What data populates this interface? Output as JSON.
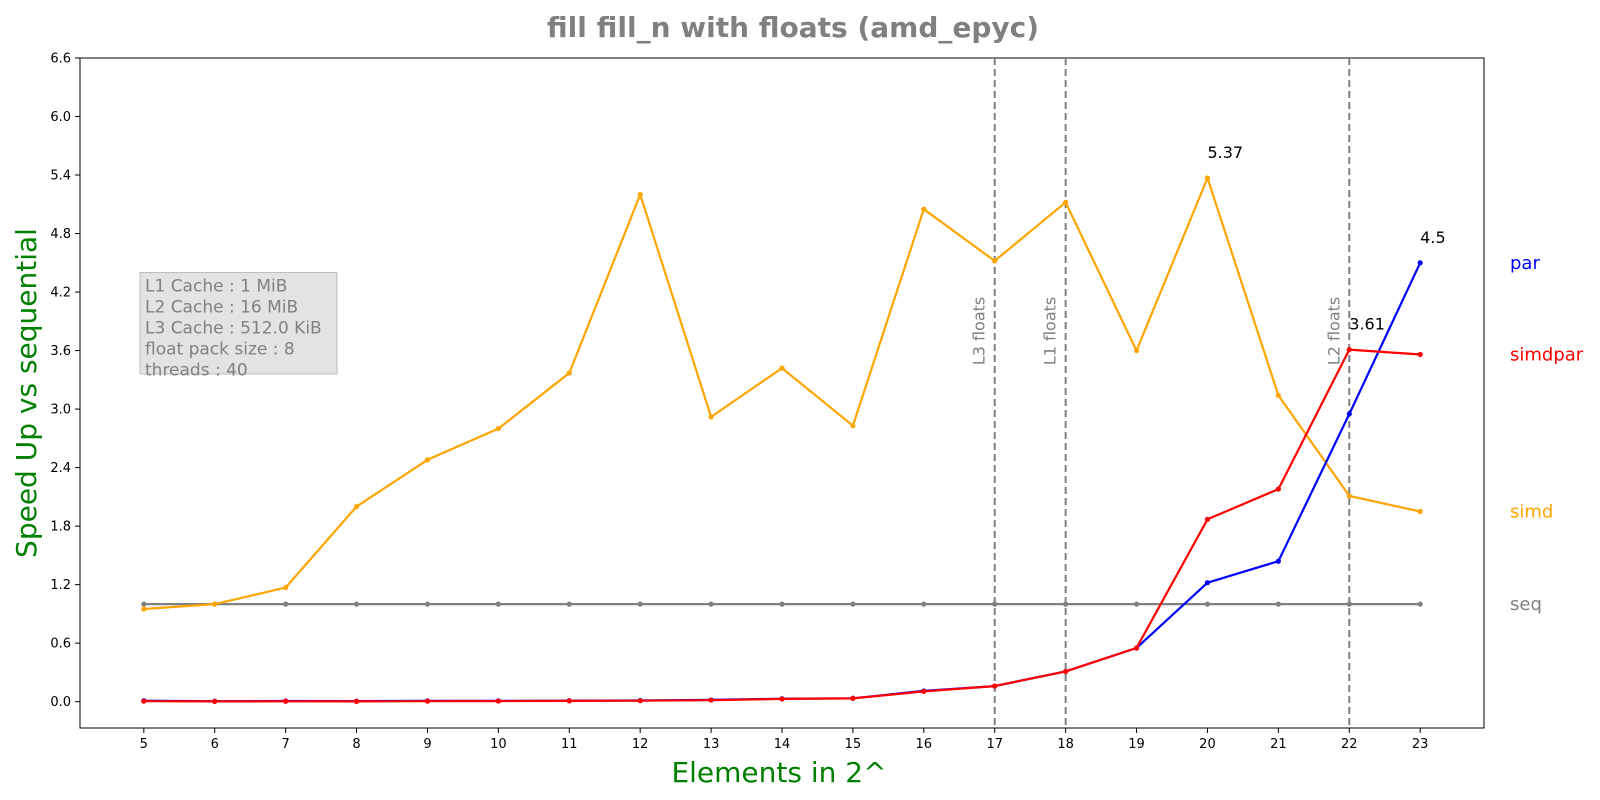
{
  "chart_data": {
    "type": "line",
    "title": "fill fill_n with floats  (amd_epyc)",
    "xlabel": "Elements in 2^",
    "ylabel": "Speed Up vs sequential",
    "x": [
      5,
      6,
      7,
      8,
      9,
      10,
      11,
      12,
      13,
      14,
      15,
      16,
      17,
      18,
      19,
      20,
      21,
      22,
      23
    ],
    "xlim": [
      4.1,
      23.9
    ],
    "ylim": [
      -0.27,
      6.6
    ],
    "yticks": [
      0.0,
      0.6,
      1.2,
      1.8,
      2.4,
      3.0,
      3.6,
      4.2,
      4.8,
      5.4,
      6.0,
      6.6
    ],
    "ytick_labels": [
      "0.0",
      "0.6",
      "1.2",
      "1.8",
      "2.4",
      "3.0",
      "3.6",
      "4.2",
      "4.8",
      "5.4",
      "6.0",
      "6.6"
    ],
    "grid": false,
    "series": [
      {
        "name": "seq",
        "color": "#808080",
        "values": [
          1.0,
          1.0,
          1.0,
          1.0,
          1.0,
          1.0,
          1.0,
          1.0,
          1.0,
          1.0,
          1.0,
          1.0,
          1.0,
          1.0,
          1.0,
          1.0,
          1.0,
          1.0,
          1.0
        ]
      },
      {
        "name": "simd",
        "color": "#FFA500",
        "values": [
          0.95,
          1.0,
          1.17,
          2.0,
          2.48,
          2.8,
          3.37,
          5.2,
          2.92,
          3.42,
          2.83,
          5.05,
          4.52,
          5.12,
          3.6,
          5.37,
          3.14,
          2.11,
          1.95
        ]
      },
      {
        "name": "par",
        "color": "#0000FF",
        "values": [
          0.01,
          0.005,
          0.007,
          0.006,
          0.008,
          0.008,
          0.01,
          0.012,
          0.018,
          0.03,
          0.035,
          0.11,
          0.16,
          0.31,
          0.55,
          1.22,
          1.44,
          2.95,
          4.5
        ]
      },
      {
        "name": "simdpar",
        "color": "#FF0000",
        "values": [
          0.005,
          0.003,
          0.004,
          0.003,
          0.005,
          0.006,
          0.008,
          0.01,
          0.015,
          0.028,
          0.033,
          0.105,
          0.16,
          0.31,
          0.55,
          1.87,
          2.18,
          3.61,
          3.56
        ]
      }
    ],
    "point_annotations": [
      {
        "x": 20,
        "y": 5.37,
        "text": "5.37"
      },
      {
        "x": 22,
        "y": 3.61,
        "text": "3.61"
      },
      {
        "x": 23,
        "y": 4.5,
        "text": "4.5"
      }
    ],
    "vlines": [
      {
        "x": 17,
        "label": "L3 floats"
      },
      {
        "x": 18,
        "label": "L1 floats"
      },
      {
        "x": 22,
        "label": "L2 floats"
      }
    ],
    "info_box": {
      "lines": [
        "L1 Cache : 1 MiB",
        "L2 Cache : 16 MiB",
        "L3 Cache : 512.0 KiB",
        "float pack size : 8",
        "threads : 40"
      ]
    },
    "legend_placement": "right, beside each series end"
  }
}
